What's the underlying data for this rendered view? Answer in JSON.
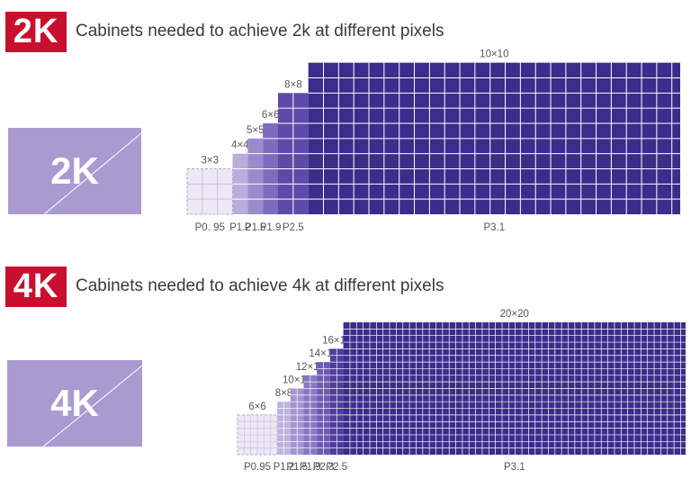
{
  "sections": [
    {
      "id": "2k",
      "badge": "2K",
      "heading": "Cabinets needed to achieve 2k at different pixels",
      "screen_label": "2K",
      "grids": [
        {
          "pitch": "P0. 95",
          "size_label": "3×3",
          "n": 3,
          "color": "#ece9f5",
          "dashed": true
        },
        {
          "pitch": "P1.2",
          "size_label": "4×4",
          "n": 4,
          "color": "#b8aedc",
          "dashed": false
        },
        {
          "pitch": "P1.5",
          "size_label": "5×5",
          "n": 5,
          "color": "#9a8bcc",
          "dashed": false
        },
        {
          "pitch": "P1.9",
          "size_label": "6×6",
          "n": 6,
          "color": "#7d6bbd",
          "dashed": false
        },
        {
          "pitch": "P2.5",
          "size_label": "8×8",
          "n": 8,
          "color": "#5e4aa9",
          "dashed": false
        },
        {
          "pitch": "P3.1",
          "size_label": "10×10",
          "n": 10,
          "color": "#3a2d8c",
          "dashed": false
        }
      ]
    },
    {
      "id": "4k",
      "badge": "4K",
      "heading": "Cabinets needed to achieve 4k at different pixels",
      "screen_label": "4K",
      "grids": [
        {
          "pitch": "P0.95",
          "size_label": "6×6",
          "n": 6,
          "color": "#ece9f5",
          "dashed": true
        },
        {
          "pitch": "P1.2",
          "size_label": "8×8",
          "n": 8,
          "color": "#bdb3df",
          "dashed": false
        },
        {
          "pitch": "P1.5",
          "size_label": "10×10",
          "n": 10,
          "color": "#a295d1",
          "dashed": false
        },
        {
          "pitch": "P1.9",
          "size_label": "12×12",
          "n": 12,
          "color": "#8878c3",
          "dashed": false
        },
        {
          "pitch": "P2.3",
          "size_label": "14×14",
          "n": 14,
          "color": "#6c5bb4",
          "dashed": false
        },
        {
          "pitch": "P2.5",
          "size_label": "16×16",
          "n": 16,
          "color": "#4f3d9f",
          "dashed": false
        },
        {
          "pitch": "P3.1",
          "size_label": "20×20",
          "n": 20,
          "color": "#3a2d8c",
          "dashed": false
        }
      ]
    }
  ]
}
